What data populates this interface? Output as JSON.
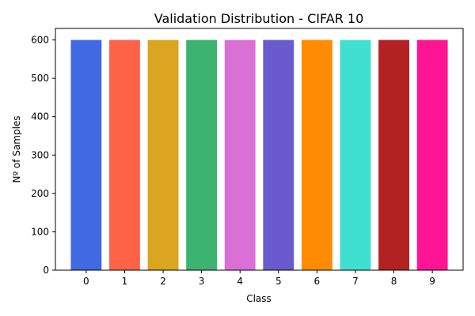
{
  "chart_data": {
    "type": "bar",
    "title": "Validation Distribution - CIFAR 10",
    "xlabel": "Class",
    "ylabel": "Nº of Samples",
    "categories": [
      "0",
      "1",
      "2",
      "3",
      "4",
      "5",
      "6",
      "7",
      "8",
      "9"
    ],
    "values": [
      600,
      600,
      600,
      600,
      600,
      600,
      600,
      600,
      600,
      600
    ],
    "colors": [
      "#4169e1",
      "#ff6347",
      "#daa520",
      "#3cb371",
      "#da70d6",
      "#6a5acd",
      "#ff8c00",
      "#40e0d0",
      "#b22222",
      "#ff1493"
    ],
    "ylim": [
      0,
      630
    ],
    "yticks": [
      0,
      100,
      200,
      300,
      400,
      500,
      600
    ],
    "grid": false,
    "legend": "none"
  }
}
